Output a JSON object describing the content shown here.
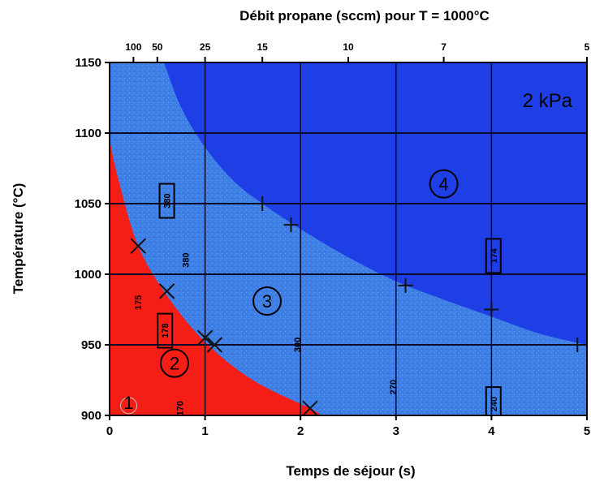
{
  "colors": {
    "region_1_2": "#f51e16",
    "region_3": "#3e7fe6",
    "region_4": "#1f3fe6",
    "grid": "#0a0a2a",
    "marker": "#111111"
  },
  "chart_data": {
    "type": "area",
    "title": "Débit propane (sccm) pour T = 1000°C",
    "xlabel": "Temps de séjour (s)",
    "ylabel": "Température (°C)",
    "xlim": [
      0,
      5
    ],
    "ylim": [
      900,
      1150
    ],
    "grid": true,
    "x_ticks": [
      "0",
      "1",
      "2",
      "3",
      "4",
      "5"
    ],
    "x_tick_values": [
      0,
      1,
      2,
      3,
      4,
      5
    ],
    "y_ticks": [
      "900",
      "950",
      "1000",
      "1050",
      "1100",
      "1150"
    ],
    "y_tick_values": [
      900,
      950,
      1000,
      1050,
      1100,
      1150
    ],
    "top_axis_ticks": [
      {
        "label": "100",
        "x": 0.25
      },
      {
        "label": "50",
        "x": 0.5
      },
      {
        "label": "25",
        "x": 1.0
      },
      {
        "label": "15",
        "x": 1.6
      },
      {
        "label": "10",
        "x": 2.5
      },
      {
        "label": "7",
        "x": 3.5
      },
      {
        "label": "5",
        "x": 5.0
      }
    ],
    "pressure_label": "2 kPa",
    "regions": [
      {
        "label": "1",
        "x": 0.2,
        "y": 907
      },
      {
        "label": "2",
        "x": 0.68,
        "y": 937
      },
      {
        "label": "3",
        "x": 1.65,
        "y": 981
      },
      {
        "label": "4",
        "x": 3.5,
        "y": 1064
      }
    ],
    "boundary_1_2_to_3": [
      [
        0.0,
        1095
      ],
      [
        0.1,
        1065
      ],
      [
        0.3,
        1020
      ],
      [
        0.6,
        985
      ],
      [
        1.0,
        952
      ],
      [
        1.5,
        925
      ],
      [
        2.1,
        905
      ],
      [
        2.22,
        900
      ]
    ],
    "boundary_3_to_4": [
      [
        0.57,
        1150
      ],
      [
        0.75,
        1118
      ],
      [
        1.0,
        1090
      ],
      [
        1.3,
        1066
      ],
      [
        1.6,
        1050
      ],
      [
        2.0,
        1032
      ],
      [
        2.5,
        1012
      ],
      [
        3.0,
        995
      ],
      [
        3.5,
        982
      ],
      [
        4.0,
        970
      ],
      [
        4.5,
        958
      ],
      [
        5.0,
        950
      ]
    ],
    "cross_markers": [
      [
        0.3,
        1020
      ],
      [
        0.6,
        988
      ],
      [
        1.0,
        955
      ],
      [
        1.1,
        950
      ],
      [
        2.1,
        905
      ]
    ],
    "plus_markers": [
      [
        1.6,
        1050
      ],
      [
        1.9,
        1035
      ],
      [
        3.1,
        992
      ],
      [
        4.0,
        975
      ],
      [
        4.9,
        950
      ]
    ],
    "boxed_labels": [
      {
        "text": "380",
        "x": 0.6,
        "y": 1052
      },
      {
        "text": "178",
        "x": 0.58,
        "y": 960
      },
      {
        "text": "174",
        "x": 4.02,
        "y": 1013
      },
      {
        "text": "240",
        "x": 4.02,
        "y": 908
      }
    ],
    "vertical_labels": [
      {
        "text": "175",
        "x": 0.33,
        "y": 980
      },
      {
        "text": "380",
        "x": 0.83,
        "y": 1010
      },
      {
        "text": "300",
        "x": 2.0,
        "y": 950
      },
      {
        "text": "270",
        "x": 3.0,
        "y": 920
      },
      {
        "text": "170",
        "x": 0.77,
        "y": 905
      }
    ]
  }
}
